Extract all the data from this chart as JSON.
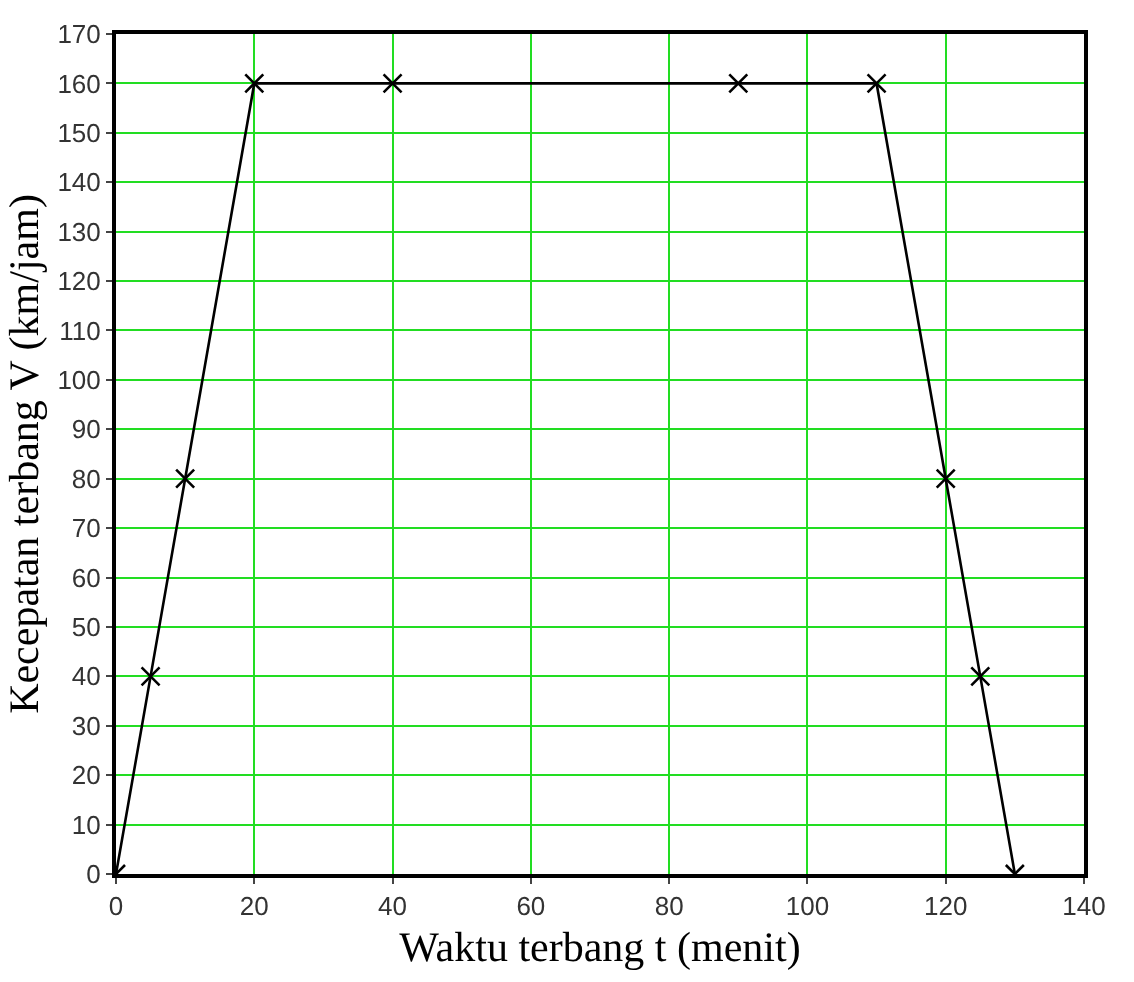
{
  "chart_data": {
    "type": "line",
    "xlabel": "Waktu terbang t (menit)",
    "ylabel": "Kecepatan terbang V (km/jam)",
    "x": [
      0,
      5,
      10,
      20,
      40,
      90,
      110,
      120,
      125,
      130
    ],
    "series": [
      {
        "color": "#000000",
        "values": [
          0,
          40,
          80,
          160,
          160,
          160,
          160,
          80,
          40,
          0
        ]
      }
    ],
    "xlim": [
      0,
      140
    ],
    "xticks": [
      0,
      20,
      40,
      60,
      80,
      100,
      120,
      140
    ],
    "ylim": [
      0,
      170
    ],
    "yticks": [
      0,
      10,
      20,
      30,
      40,
      50,
      60,
      70,
      80,
      90,
      100,
      110,
      120,
      130,
      140,
      150,
      160,
      170
    ],
    "grid": true,
    "marker": "cross",
    "line_style": "solid",
    "legend": false
  }
}
